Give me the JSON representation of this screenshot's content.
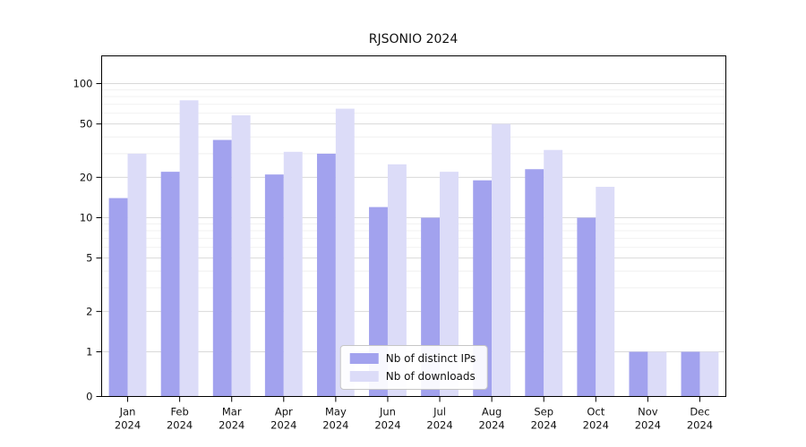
{
  "chart_data": {
    "type": "bar",
    "title": "RJSONIO 2024",
    "categories": [
      "Jan 2024",
      "Feb 2024",
      "Mar 2024",
      "Apr 2024",
      "May 2024",
      "Jun 2024",
      "Jul 2024",
      "Aug 2024",
      "Sep 2024",
      "Oct 2024",
      "Nov 2024",
      "Dec 2024"
    ],
    "series": [
      {
        "name": "Nb of distinct IPs",
        "color": "#a2a2ee",
        "values": [
          14,
          22,
          38,
          21,
          30,
          12,
          10,
          19,
          23,
          10,
          1,
          1
        ]
      },
      {
        "name": "Nb of downloads",
        "color": "#dcdcf8",
        "values": [
          30,
          75,
          58,
          31,
          65,
          25,
          22,
          50,
          32,
          17,
          1,
          1
        ]
      }
    ],
    "yticks": [
      0,
      1,
      2,
      5,
      10,
      20,
      50,
      100
    ],
    "y_minor_gridlines": [
      3,
      4,
      6,
      7,
      8,
      9,
      30,
      40,
      60,
      70,
      80,
      90
    ],
    "yscale": "log above 1, linear between 0 and 1",
    "ylim": [
      0,
      160
    ],
    "grid": true,
    "legend_position": "lower center inside plot",
    "colors": {
      "major_grid": "#d9d9d9",
      "minor_grid": "#ededed",
      "axis": "#000000",
      "text": "#111111"
    }
  }
}
